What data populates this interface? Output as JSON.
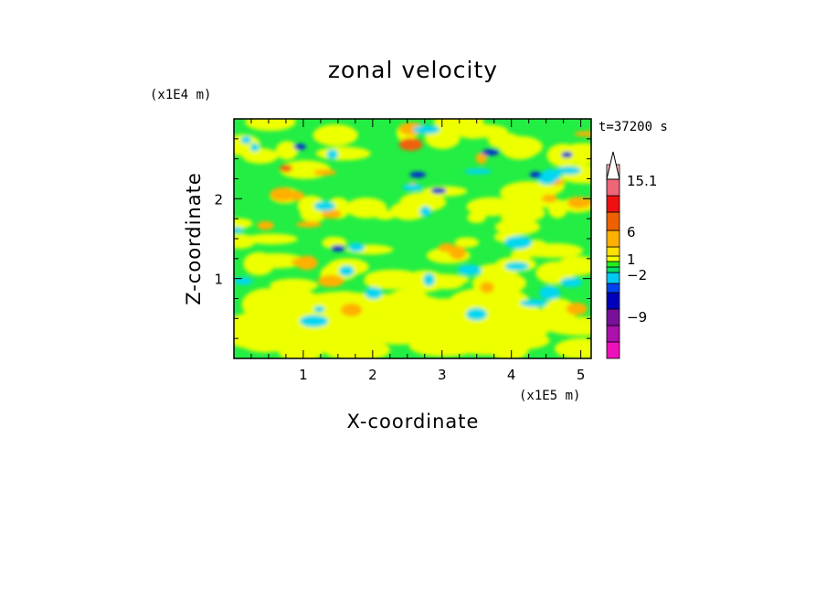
{
  "chart_data": {
    "type": "heatmap",
    "title": "zonal velocity",
    "xlabel": "X-coordinate",
    "ylabel": "Z-coordinate",
    "x_scale_label": "(x1E5 m)",
    "y_scale_label": "(x1E4 m)",
    "time_label": "t=37200 s",
    "xlim": [
      0,
      5.15
    ],
    "ylim": [
      0,
      3.0
    ],
    "x_ticks": [
      1,
      2,
      3,
      4,
      5
    ],
    "y_ticks": [
      1,
      2
    ],
    "x_tick_labels": [
      "1",
      "2",
      "3",
      "4",
      "5"
    ],
    "y_tick_labels": [
      "1",
      "2"
    ],
    "colorbar": {
      "labels": [
        {
          "text": "15.1",
          "value": 15.1
        },
        {
          "text": "6",
          "value": 6
        },
        {
          "text": "1",
          "value": 1
        },
        {
          "text": "−2",
          "value": -2
        },
        {
          "text": "−9",
          "value": -9
        }
      ],
      "colors": [
        "#ee11bb",
        "#aa11aa",
        "#771199",
        "#0000bb",
        "#0044ee",
        "#00c8f0",
        "#00dd66",
        "#22ee22",
        "#eeff00",
        "#ffe000",
        "#ffb000",
        "#ee6000",
        "#ee1111",
        "#ee6677",
        "#ffb6b6",
        "#ffffff"
      ]
    },
    "field_levels": {
      "strong_negative": "#0033cc",
      "negative": "#00d8f0",
      "weak_negative": "#22ee44",
      "near_zero": "#eeff00",
      "weak_positive": "#ffb000",
      "positive": "#ee6010"
    }
  }
}
